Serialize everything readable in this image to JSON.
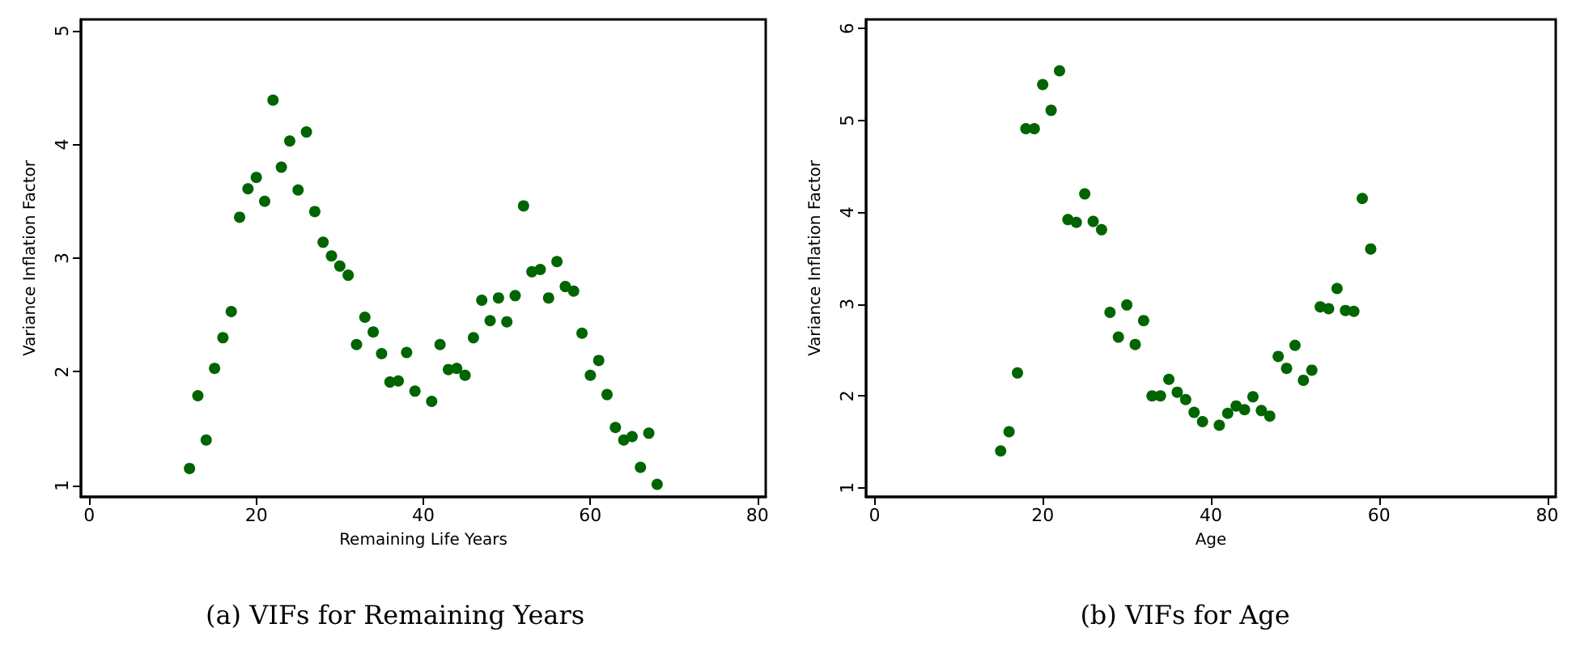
{
  "chart_data": [
    {
      "type": "scatter",
      "title": "(a) VIFs for Remaining Years",
      "xlabel": "Remaining Life Years",
      "ylabel": "Variance Inflation Factor",
      "marker": "circle",
      "grid": false,
      "xlim": [
        -1,
        81
      ],
      "xticks": [
        0,
        20,
        40,
        60,
        80
      ],
      "ylim": [
        0.9,
        5.1
      ],
      "yticks": [
        1,
        2,
        3,
        4,
        5
      ],
      "x": [
        12,
        13,
        14,
        15,
        16,
        17,
        18,
        19,
        20,
        21,
        22,
        23,
        24,
        25,
        26,
        27,
        28,
        29,
        30,
        31,
        32,
        33,
        34,
        35,
        36,
        37,
        38,
        39,
        41,
        42,
        43,
        44,
        45,
        46,
        47,
        48,
        49,
        50,
        51,
        52,
        53,
        54,
        55,
        56,
        57,
        58,
        59,
        60,
        61,
        62,
        63,
        64,
        65,
        66,
        67,
        68
      ],
      "series": [
        {
          "color": "#006400",
          "values": [
            1.15,
            1.79,
            1.4,
            2.03,
            2.3,
            2.53,
            3.36,
            3.61,
            3.71,
            3.5,
            4.39,
            3.8,
            4.03,
            3.6,
            4.11,
            3.41,
            3.14,
            3.02,
            2.93,
            2.85,
            2.24,
            2.48,
            2.35,
            2.16,
            1.91,
            1.92,
            2.17,
            1.83,
            1.74,
            2.24,
            2.02,
            2.03,
            1.97,
            2.3,
            2.63,
            2.45,
            2.65,
            2.44,
            2.67,
            3.46,
            2.88,
            2.9,
            2.65,
            2.97,
            2.75,
            2.71,
            2.34,
            1.97,
            2.1,
            1.8,
            1.51,
            1.4,
            1.43,
            1.16,
            1.46,
            1.01
          ]
        }
      ]
    },
    {
      "type": "scatter",
      "title": "(b) VIFs for Age",
      "xlabel": "Age",
      "ylabel": "Variance Inflation Factor",
      "marker": "circle",
      "grid": false,
      "xlim": [
        -1,
        81
      ],
      "xticks": [
        0,
        20,
        40,
        60,
        80
      ],
      "ylim": [
        0.9,
        6.1
      ],
      "yticks": [
        1,
        2,
        3,
        4,
        5,
        6
      ],
      "x": [
        15,
        16,
        17,
        18,
        19,
        20,
        21,
        22,
        23,
        24,
        25,
        26,
        27,
        28,
        29,
        30,
        31,
        32,
        33,
        34,
        35,
        36,
        37,
        38,
        39,
        41,
        42,
        43,
        44,
        45,
        46,
        47,
        48,
        49,
        50,
        51,
        52,
        53,
        54,
        55,
        56,
        57,
        58,
        59
      ],
      "series": [
        {
          "color": "#006400",
          "values": [
            1.4,
            1.61,
            2.25,
            4.91,
            4.91,
            5.39,
            5.11,
            5.54,
            3.92,
            3.89,
            4.2,
            3.9,
            3.81,
            2.91,
            2.64,
            2.99,
            2.56,
            2.82,
            2.0,
            2.0,
            2.18,
            2.04,
            1.96,
            1.82,
            1.72,
            1.68,
            1.81,
            1.89,
            1.85,
            1.99,
            1.84,
            1.78,
            2.43,
            2.3,
            2.55,
            2.17,
            2.28,
            2.97,
            2.95,
            3.17,
            2.93,
            2.92,
            4.15,
            3.6
          ]
        }
      ]
    }
  ]
}
